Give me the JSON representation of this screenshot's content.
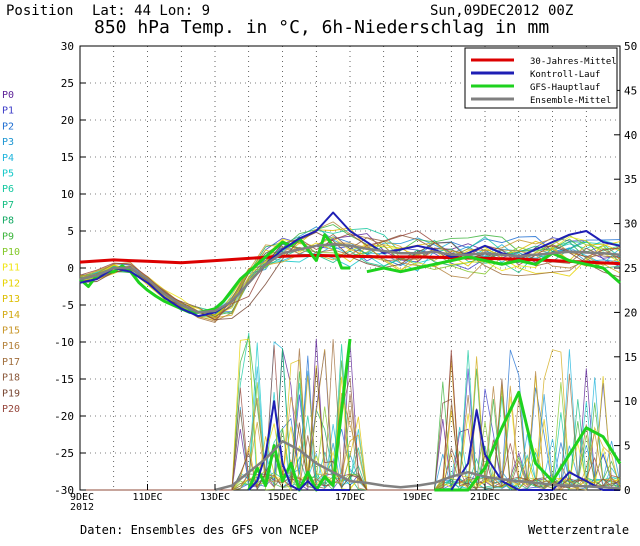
{
  "header": {
    "position_label": "Position",
    "location": "Lat: 44 Lon: 9",
    "run_date": "Sun,09DEC2012 00Z",
    "title": "850 hPa Temp. in °C, 6h-Niederschlag in mm"
  },
  "footer": {
    "source": "Daten: Ensembles des GFS von NCEP",
    "brand": "Wetterzentrale"
  },
  "members": [
    {
      "label": "P0",
      "color": "#5a1e96"
    },
    {
      "label": "P1",
      "color": "#3c3cc8"
    },
    {
      "label": "P2",
      "color": "#1e6ed2"
    },
    {
      "label": "P3",
      "color": "#1e96d2"
    },
    {
      "label": "P4",
      "color": "#1eb4dc"
    },
    {
      "label": "P5",
      "color": "#14c8c8"
    },
    {
      "label": "P6",
      "color": "#14c8a0"
    },
    {
      "label": "P7",
      "color": "#14be82"
    },
    {
      "label": "P8",
      "color": "#14aa64"
    },
    {
      "label": "P9",
      "color": "#3cb43c"
    },
    {
      "label": "P10",
      "color": "#82c828"
    },
    {
      "label": "P11",
      "color": "#f0e614"
    },
    {
      "label": "P12",
      "color": "#e6d200"
    },
    {
      "label": "P13",
      "color": "#dcbe00"
    },
    {
      "label": "P14",
      "color": "#d2aa14"
    },
    {
      "label": "P15",
      "color": "#c89628"
    },
    {
      "label": "P16",
      "color": "#b4823c"
    },
    {
      "label": "P17",
      "color": "#a06e3c"
    },
    {
      "label": "P18",
      "color": "#8c5a3c"
    },
    {
      "label": "P19",
      "color": "#784632"
    },
    {
      "label": "P20",
      "color": "#96463c"
    }
  ],
  "chart_data": {
    "type": "line",
    "x_tick_labels": [
      "9DEC\n2012",
      "11DEC",
      "13DEC",
      "15DEC",
      "17DEC",
      "19DEC",
      "21DEC",
      "23DEC"
    ],
    "x_tick_positions_days": [
      0,
      2,
      4,
      6,
      8,
      10,
      12,
      14
    ],
    "x_range_days": [
      0,
      16
    ],
    "ylim_left": [
      -30,
      30
    ],
    "ylim_right": [
      0,
      50
    ],
    "yticks_left": [
      30,
      25,
      20,
      15,
      10,
      5,
      0,
      -5,
      -10,
      -15,
      -20,
      -25,
      -30
    ],
    "yticks_right": [
      50,
      45,
      40,
      35,
      30,
      25,
      20,
      15,
      10,
      5,
      0
    ],
    "grid": true,
    "legend_position": "top-right",
    "legend": [
      {
        "name": "30-Jahres-Mittel",
        "color": "#dc0000"
      },
      {
        "name": "Kontroll-Lauf",
        "color": "#1e1eb4"
      },
      {
        "name": "GFS-Hauptlauf",
        "color": "#1ed21e"
      },
      {
        "name": "Ensemble-Mittel",
        "color": "#808080"
      }
    ],
    "series": [
      {
        "key": "clim",
        "axis": "left",
        "color": "#dc0000",
        "width": 3,
        "x": [
          0,
          1,
          2,
          3,
          4,
          5,
          6,
          7,
          8,
          9,
          10,
          11,
          12,
          13,
          14,
          15,
          16
        ],
        "y": [
          0.8,
          1.1,
          0.9,
          0.7,
          1.0,
          1.3,
          1.6,
          1.7,
          1.6,
          1.5,
          1.5,
          1.4,
          1.3,
          1.2,
          1.0,
          0.8,
          0.6
        ]
      },
      {
        "key": "gfs",
        "axis": "left",
        "color": "#1ed21e",
        "width": 3,
        "x": [
          0,
          0.25,
          0.5,
          0.75,
          1,
          1.25,
          1.5,
          1.75,
          2,
          2.25,
          2.5,
          2.75,
          3,
          3.25,
          3.5,
          3.75,
          4,
          4.25,
          4.5,
          4.75,
          5,
          5.25,
          5.5,
          5.75,
          6,
          6.25,
          6.5,
          6.75,
          7,
          7.25,
          7.5,
          7.75,
          8
        ],
        "y": [
          -1.5,
          -2.5,
          -1,
          -0.5,
          -0.5,
          0.3,
          -0.5,
          -2,
          -3,
          -3.8,
          -4.5,
          -5,
          -5.5,
          -6,
          -6,
          -5.8,
          -5.5,
          -4.5,
          -3,
          -1.5,
          -0.5,
          0.5,
          1.5,
          2.5,
          3.5,
          3,
          4,
          2.5,
          1,
          4.5,
          3,
          0,
          0
        ]
      },
      {
        "key": "gfs_b",
        "axis": "left",
        "color": "#1ed21e",
        "width": 3,
        "x": [
          8.5,
          9,
          9.5,
          10,
          10.5,
          11,
          11.5,
          12,
          12.5,
          13,
          13.5,
          14,
          14.5,
          15,
          15.5,
          16
        ],
        "y": [
          -0.5,
          0,
          -0.5,
          0,
          0.5,
          1,
          1.5,
          1,
          0.5,
          1,
          0.5,
          2,
          1,
          0.5,
          0,
          -2
        ]
      },
      {
        "key": "control",
        "axis": "left",
        "color": "#1e1eb4",
        "width": 2,
        "x": [
          0,
          0.5,
          1,
          1.5,
          2,
          2.5,
          3,
          3.5,
          4,
          4.5,
          5,
          5.5,
          6,
          6.5,
          7,
          7.5,
          8,
          8.5,
          9,
          9.5,
          10,
          10.5,
          11,
          11.5,
          12,
          12.5,
          13,
          13.5,
          14,
          14.5,
          15,
          15.5,
          16
        ],
        "y": [
          -2,
          -1.5,
          0,
          -0.5,
          -2,
          -4,
          -5.5,
          -6.5,
          -6,
          -4.5,
          -2,
          0.5,
          2.5,
          4,
          5,
          7.5,
          5,
          3.5,
          2,
          2.5,
          3,
          2.5,
          1.5,
          2,
          3,
          2,
          1.5,
          2.5,
          3.5,
          4.5,
          5,
          3.5,
          3
        ]
      },
      {
        "key": "mean",
        "axis": "left",
        "color": "#808080",
        "width": 2.5,
        "x": [
          0,
          0.5,
          1,
          1.5,
          2,
          2.5,
          3,
          3.5,
          4,
          4.5,
          5,
          5.5,
          6,
          6.5,
          7,
          7.5,
          8,
          8.5,
          9,
          9.5,
          10,
          10.5,
          11,
          11.5,
          12,
          12.5,
          13,
          13.5,
          14,
          14.5,
          15,
          15.5,
          16
        ],
        "y": [
          -1.5,
          -1,
          0,
          0,
          -1.5,
          -3.5,
          -5,
          -6,
          -5.8,
          -4.5,
          -2,
          0.5,
          2,
          2.5,
          3,
          3.2,
          3,
          2.6,
          2.3,
          2,
          2,
          2.2,
          1.8,
          1.8,
          2,
          1.8,
          1.6,
          1.8,
          2,
          2.2,
          2.1,
          2.0,
          1.8
        ]
      },
      {
        "key": "gfs_precip",
        "axis": "right",
        "color": "#1ed21e",
        "width": 3,
        "x": [
          5,
          5.25,
          5.5,
          5.75,
          6,
          6.25,
          6.5,
          6.75,
          7,
          7.25,
          7.5,
          7.75,
          8
        ],
        "y": [
          0,
          2.5,
          0.5,
          5,
          1,
          3,
          0,
          2,
          0,
          1.5,
          0.5,
          9,
          17
        ]
      },
      {
        "key": "gfs_precip_b",
        "axis": "right",
        "color": "#1ed21e",
        "width": 3,
        "x": [
          10.5,
          11,
          11.5,
          12,
          12.5,
          13,
          13.5,
          14,
          14.5,
          15,
          15.5,
          16
        ],
        "y": [
          0,
          0,
          0,
          2.5,
          7,
          11,
          3,
          1,
          4,
          7,
          6,
          3
        ]
      },
      {
        "key": "control_precip",
        "axis": "right",
        "color": "#1e1eb4",
        "width": 2,
        "x": [
          5,
          5.25,
          5.5,
          5.75,
          6,
          6.25,
          6.5,
          6.75,
          7,
          7.25,
          7.5,
          7.75,
          8
        ],
        "y": [
          0,
          1,
          4,
          10,
          3,
          0.5,
          0,
          1,
          0,
          0,
          0,
          0,
          0
        ]
      },
      {
        "key": "control_precip_b",
        "axis": "right",
        "color": "#1e1eb4",
        "width": 2,
        "x": [
          11,
          11.5,
          11.75,
          12,
          12.5,
          13,
          13.5,
          14,
          14.5,
          15,
          15.5,
          16
        ],
        "y": [
          0,
          3,
          9,
          4,
          1,
          0,
          0,
          0,
          2,
          1,
          0,
          0
        ]
      },
      {
        "key": "mean_precip",
        "axis": "right",
        "color": "#808080",
        "width": 2.5,
        "x": [
          4,
          4.5,
          5,
          5.5,
          6,
          6.5,
          7,
          7.5,
          8,
          8.5,
          9,
          9.5,
          10,
          10.5,
          11,
          11.5,
          12,
          12.5,
          13,
          13.5,
          14,
          14.5,
          15,
          15.5,
          16
        ],
        "y": [
          0,
          0.5,
          2,
          3.5,
          5.5,
          4.5,
          3,
          2,
          1,
          0.8,
          0.5,
          0.3,
          0.5,
          0.8,
          1.5,
          2,
          1.5,
          1.2,
          1,
          0.8,
          0.6,
          0.5,
          0.4,
          0.3,
          0.2
        ]
      }
    ]
  }
}
